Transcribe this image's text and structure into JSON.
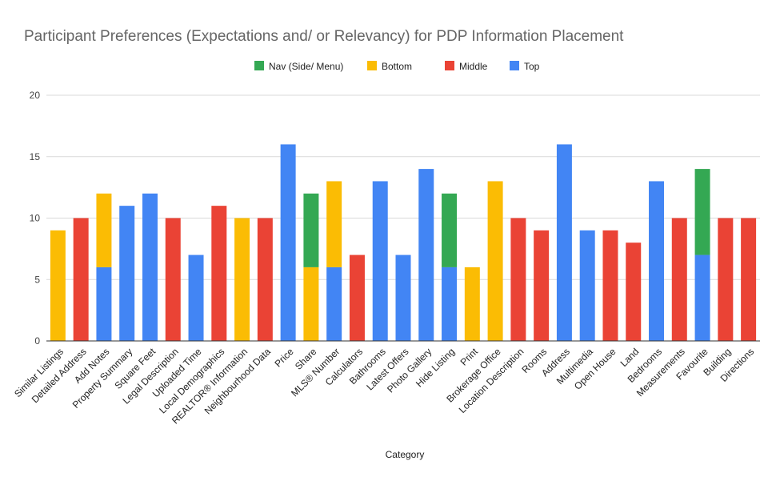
{
  "chart_data": {
    "type": "bar",
    "stacked": true,
    "title": "Participant Preferences (Expectations and/ or Relevancy) for PDP Information Placement",
    "xlabel": "Category",
    "ylabel": "",
    "ylim": [
      0,
      20
    ],
    "yticks": [
      0,
      5,
      10,
      15,
      20
    ],
    "grid": true,
    "legend_position": "top-center",
    "categories": [
      "Similar Listings",
      "Detailed Address",
      "Add Notes",
      "Property Summary",
      "Square Feet",
      "Legal Description",
      "Uploaded Time",
      "Local Demographics",
      "REALTOR® Information",
      "Neighbourhood Data",
      "Price",
      "Share",
      "MLS® Number",
      "Calculators",
      "Bathrooms",
      "Latest Offers",
      "Photo Gallery",
      "Hide Listing",
      "Print",
      "Brokerage Office",
      "Location Description",
      "Rooms",
      "Address",
      "Multimedia",
      "Open House",
      "Land",
      "Bedrooms",
      "Measurements",
      "Favourite",
      "Building",
      "Directions"
    ],
    "series": [
      {
        "name": "Top",
        "color": "#4285f4",
        "values": [
          0,
          0,
          6,
          11,
          12,
          0,
          7,
          0,
          0,
          0,
          16,
          0,
          6,
          0,
          13,
          7,
          14,
          6,
          0,
          0,
          0,
          0,
          16,
          9,
          0,
          0,
          13,
          0,
          7,
          0,
          0
        ]
      },
      {
        "name": "Middle",
        "color": "#ea4335",
        "values": [
          0,
          10,
          0,
          0,
          0,
          10,
          0,
          11,
          0,
          10,
          0,
          0,
          0,
          7,
          0,
          0,
          0,
          0,
          0,
          0,
          10,
          9,
          0,
          0,
          9,
          8,
          0,
          10,
          0,
          10,
          10
        ]
      },
      {
        "name": "Bottom",
        "color": "#fbbc04",
        "values": [
          9,
          0,
          6,
          0,
          0,
          0,
          0,
          0,
          10,
          0,
          0,
          6,
          7,
          0,
          0,
          0,
          0,
          0,
          6,
          13,
          0,
          0,
          0,
          0,
          0,
          0,
          0,
          0,
          0,
          0,
          0
        ]
      },
      {
        "name": "Nav (Side/ Menu)",
        "color": "#34a853",
        "values": [
          0,
          0,
          0,
          0,
          0,
          0,
          0,
          0,
          0,
          0,
          0,
          6,
          0,
          0,
          0,
          0,
          0,
          6,
          0,
          0,
          0,
          0,
          0,
          0,
          0,
          0,
          0,
          0,
          7,
          0,
          0
        ]
      }
    ],
    "legend_order": [
      "Nav (Side/ Menu)",
      "Bottom",
      "Middle",
      "Top"
    ]
  }
}
